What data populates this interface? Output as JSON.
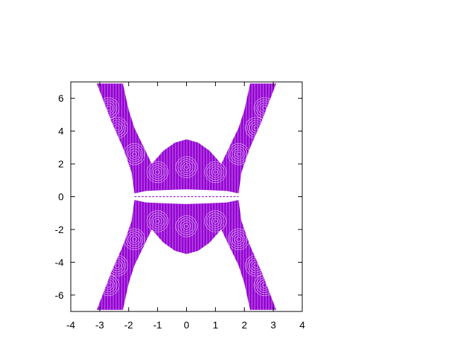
{
  "chart_data": {
    "type": "area",
    "title": "",
    "xlabel": "",
    "ylabel": "",
    "xlim": [
      -4,
      4
    ],
    "ylim": [
      -7,
      7
    ],
    "x_ticks": [
      "-4",
      "-3",
      "-2",
      "-1",
      "0",
      "1",
      "2",
      "3",
      "4"
    ],
    "y_ticks": [
      "6",
      "4",
      "2",
      "0",
      "-2",
      "-4",
      "-6"
    ],
    "grid": false,
    "legend": "none",
    "color": "#9400d3",
    "hatch_color": "#ffffff",
    "series": [
      {
        "upper": {
          "x": [
            -3.1,
            -2.6,
            -2.2,
            -1.9,
            -1.8,
            1.8,
            1.9,
            2.2,
            2.6,
            3.1
          ],
          "y": [
            6.9,
            4.6,
            3.0,
            1.5,
            0.2,
            0.2,
            1.5,
            3.0,
            4.6,
            6.9
          ]
        },
        "inner_cap": {
          "x": [
            -2.2,
            -2.0,
            -1.8,
            -1.5,
            -1.2,
            -0.8,
            -0.4,
            0.0,
            0.4,
            0.8,
            1.2,
            1.5,
            1.8,
            2.0,
            2.2
          ],
          "y": [
            6.9,
            5.3,
            4.2,
            3.1,
            2.0,
            2.8,
            3.3,
            3.5,
            3.3,
            2.8,
            2.0,
            3.1,
            4.2,
            5.3,
            6.9
          ]
        },
        "gap": {
          "x": [
            -1.8,
            -1.4,
            -0.8,
            0.0,
            0.8,
            1.4,
            1.8
          ],
          "y": [
            0.2,
            0.35,
            0.4,
            0.45,
            0.4,
            0.35,
            0.2
          ]
        }
      }
    ]
  }
}
